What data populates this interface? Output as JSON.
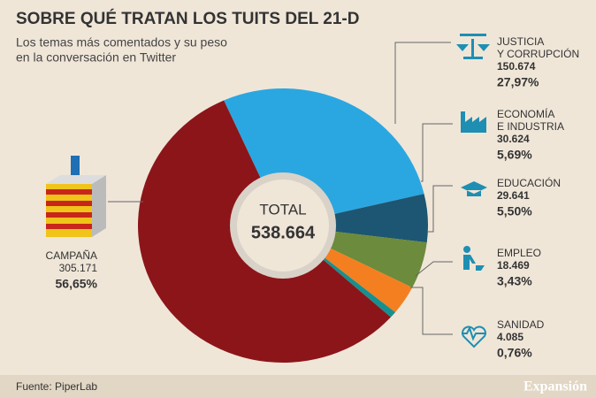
{
  "chart_data": {
    "type": "pie",
    "title": "SOBRE QUÉ TRATAN LOS TUITS DEL 21-D",
    "subtitle": [
      "Los temas más comentados y su peso",
      "en la conversación en Twitter"
    ],
    "categories": [
      [
        "JUSTICIA",
        "Y CORRUPCIÓN"
      ],
      [
        "ECONOMÍA",
        "E INDUSTRIA"
      ],
      [
        "EDUCACIÓN"
      ],
      [
        "EMPLEO"
      ],
      [
        "SANIDAD"
      ],
      [
        "CAMPAÑA"
      ]
    ],
    "values": [
      150674,
      30624,
      29641,
      18469,
      4085,
      305171
    ],
    "value_labels": [
      "150.674",
      "30.624",
      "29.641",
      "18.469",
      "4.085",
      "305.171"
    ],
    "shares": [
      27.97,
      5.69,
      5.5,
      3.43,
      0.76,
      56.65
    ],
    "share_labels": [
      "27,97%",
      "5,69%",
      "5,50%",
      "3,43%",
      "0,76%",
      "56,65%"
    ],
    "colors": [
      "#2aa7e1",
      "#1d5673",
      "#6c8b3c",
      "#f47f21",
      "#16908f",
      "#8c1519"
    ],
    "total_title": "TOTAL",
    "total": 538664,
    "total_label": "538.664",
    "source": "Fuente: PiperLab",
    "brand": "Expansión"
  }
}
